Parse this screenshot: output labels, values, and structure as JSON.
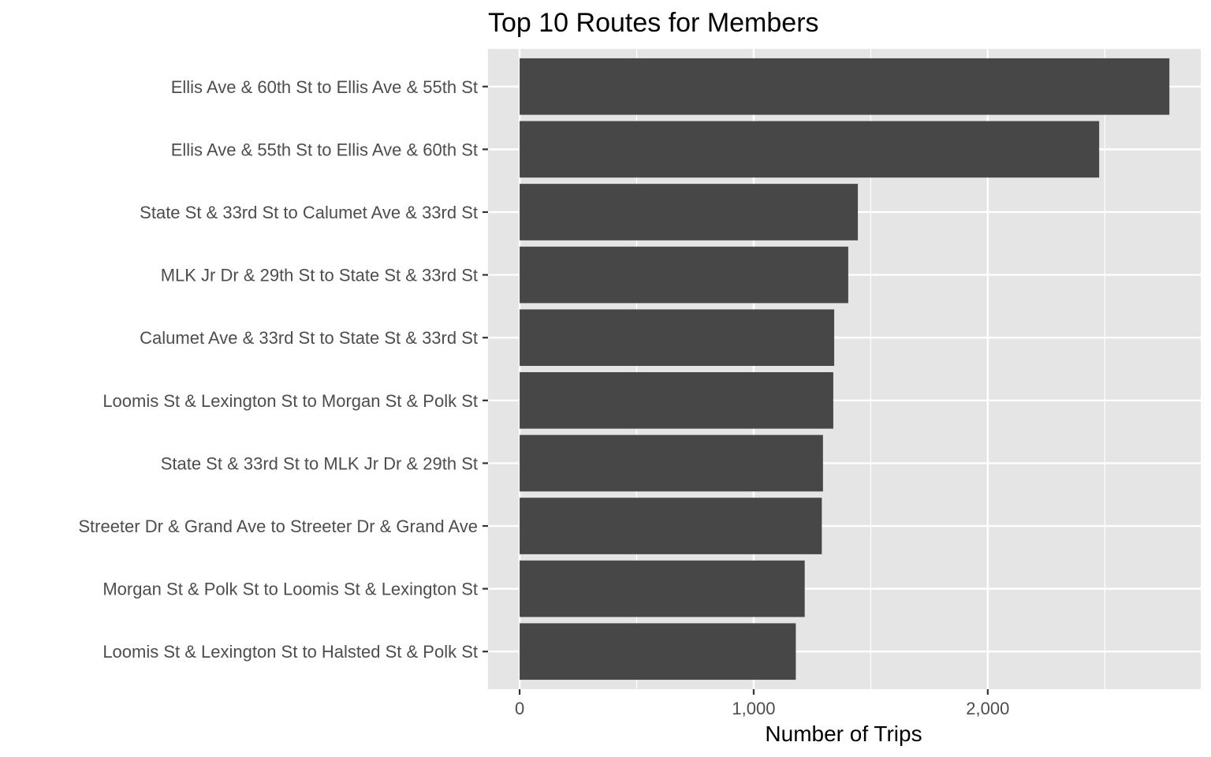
{
  "chart_data": {
    "type": "bar",
    "orientation": "horizontal",
    "title": "Top 10 Routes for Members",
    "xlabel": "Number of Trips",
    "ylabel": "",
    "categories": [
      "Ellis Ave & 60th St  to  Ellis Ave & 55th St",
      "Ellis Ave & 55th St  to  Ellis Ave & 60th St",
      "State St & 33rd St  to  Calumet Ave & 33rd St",
      "MLK Jr Dr & 29th St  to  State St & 33rd St",
      "Calumet Ave & 33rd St  to  State St & 33rd St",
      "Loomis St & Lexington St  to  Morgan St & Polk St",
      "State St & 33rd St  to  MLK Jr Dr & 29th St",
      "Streeter Dr & Grand Ave  to  Streeter Dr & Grand Ave",
      "Morgan St & Polk St  to  Loomis St & Lexington St",
      "Loomis St & Lexington St  to  Halsted St & Polk St"
    ],
    "values": [
      2776,
      2476,
      1445,
      1404,
      1344,
      1340,
      1296,
      1291,
      1218,
      1180
    ],
    "xlim": [
      -135,
      2910
    ],
    "xticks": [
      0,
      1000,
      2000
    ],
    "xtick_labels": [
      "0",
      "1,000",
      "2,000"
    ],
    "minor_xticks": [
      500,
      1500,
      2500
    ],
    "grid": true,
    "colors": {
      "bar": "#474747",
      "panel": "#e5e5e5",
      "grid": "#ffffff",
      "text": "#4d4d4d",
      "tick": "#333333"
    }
  }
}
